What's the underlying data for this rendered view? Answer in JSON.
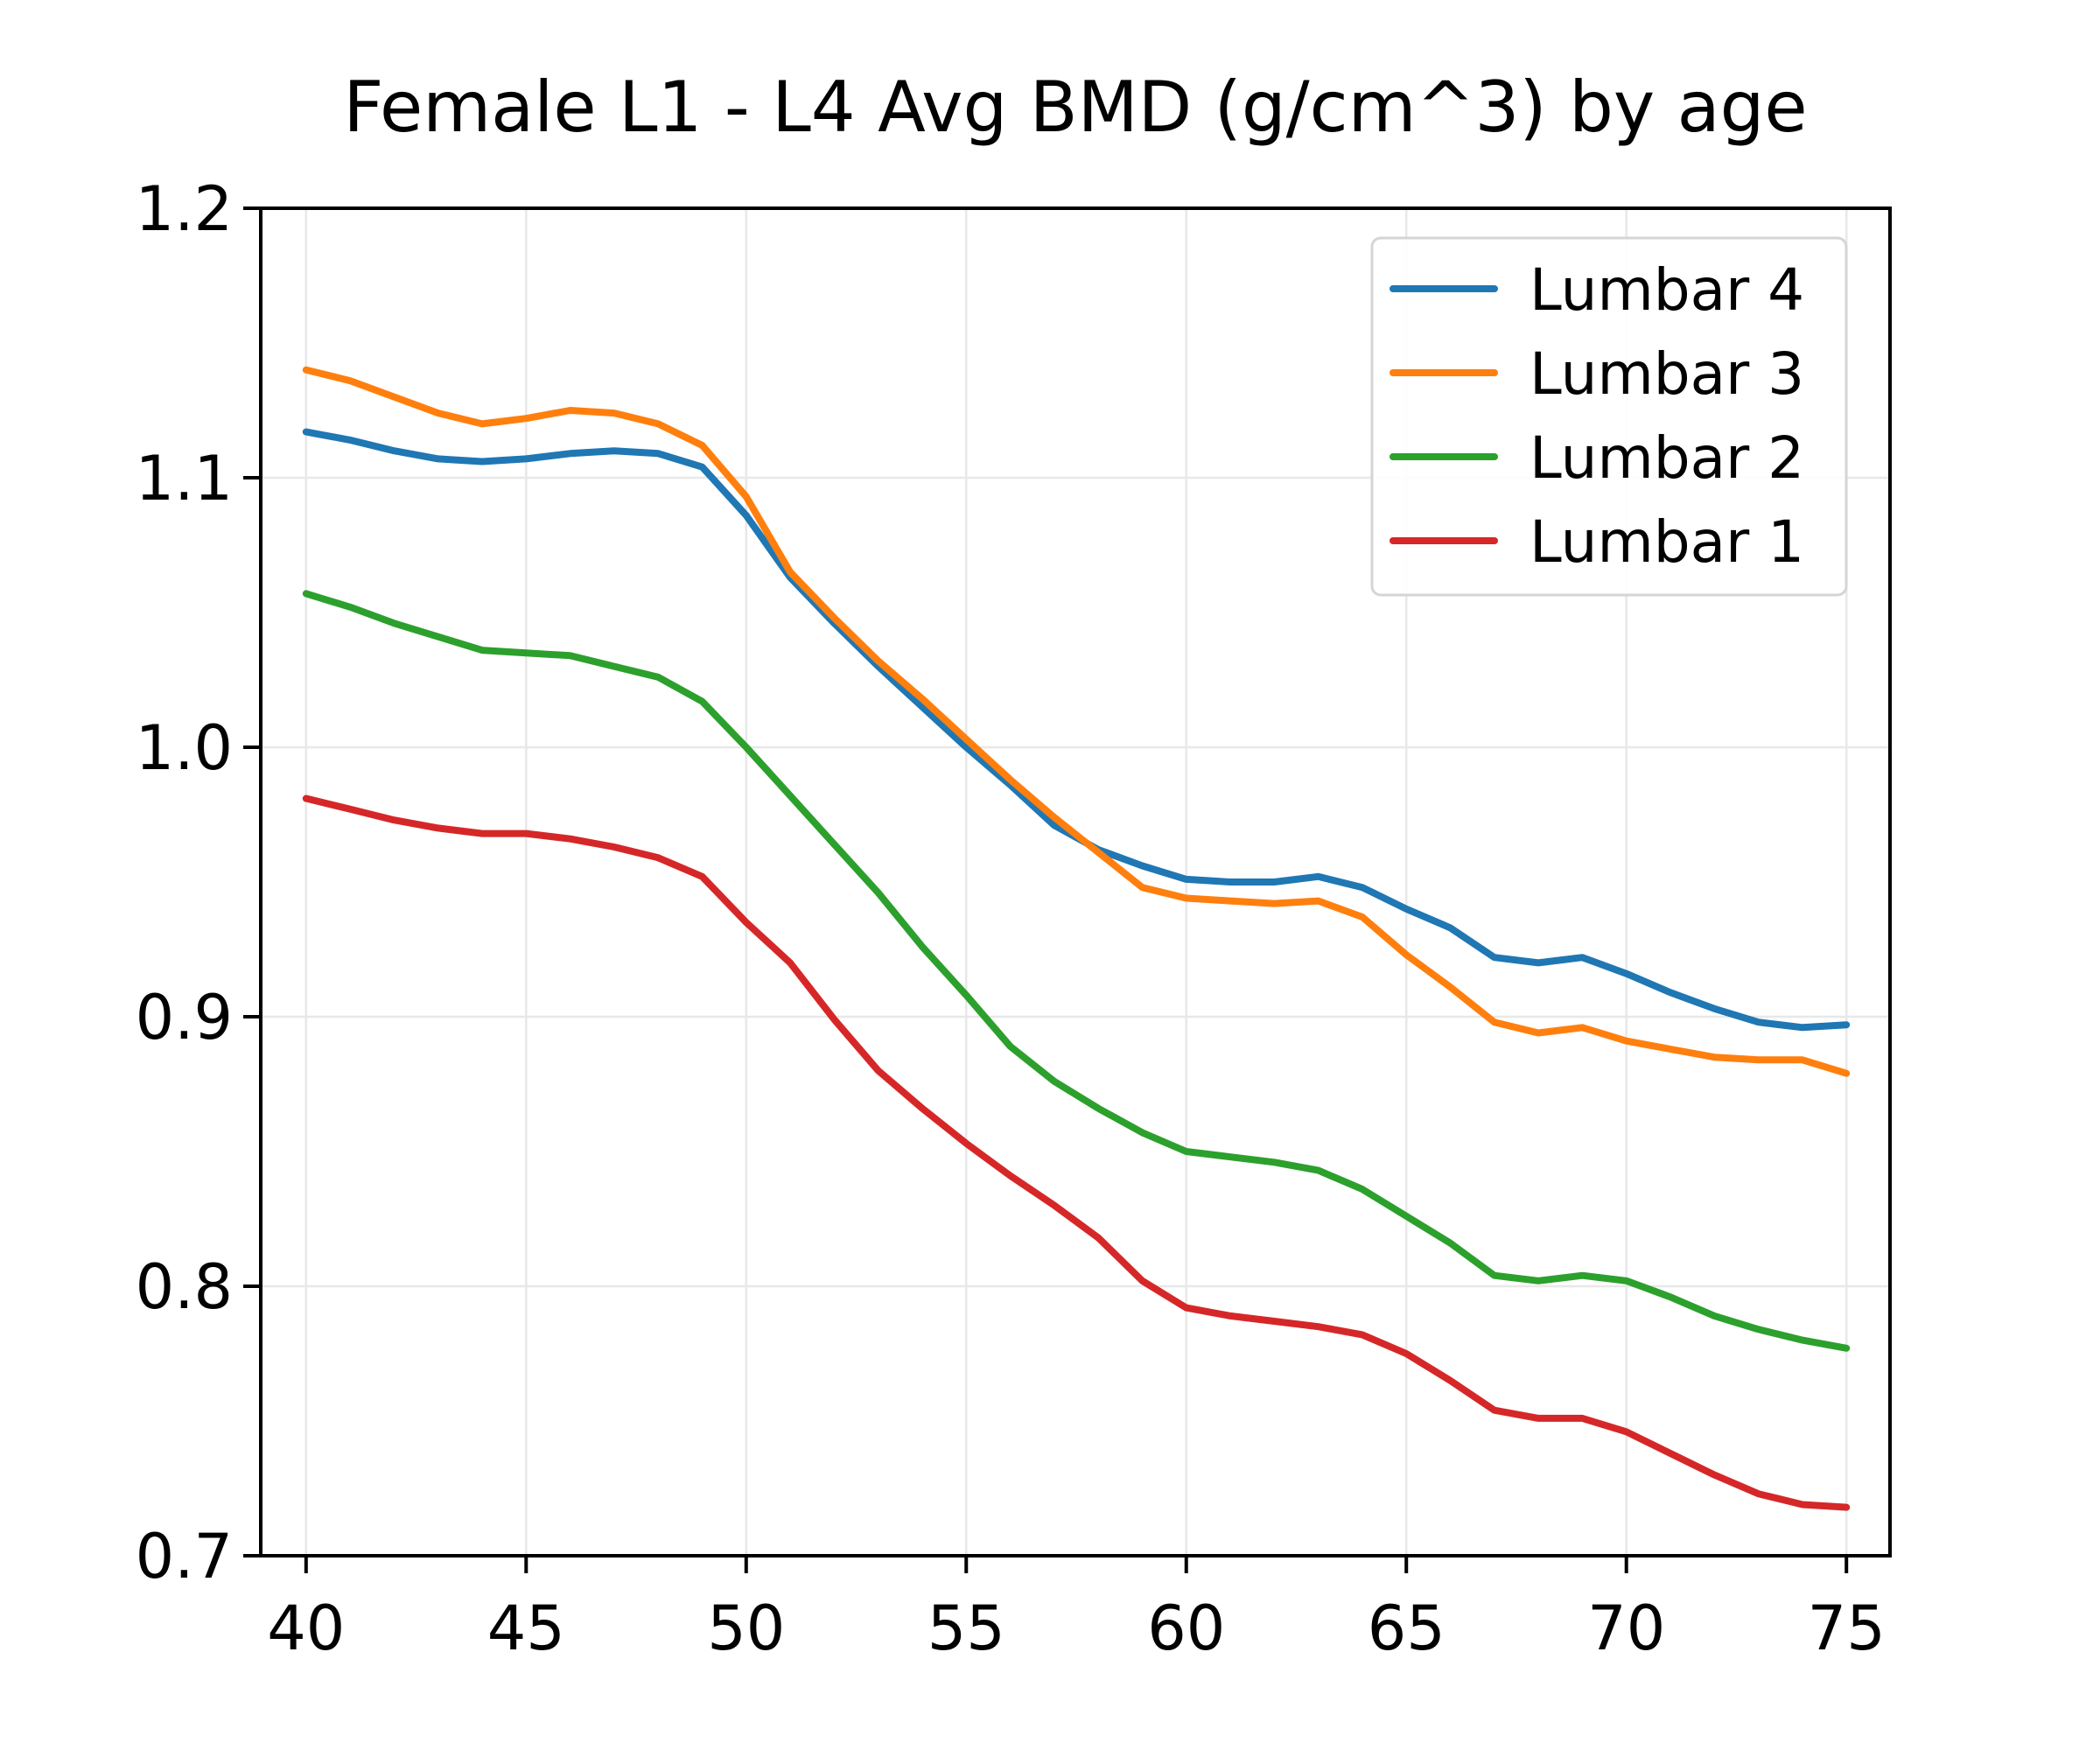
{
  "chart_data": {
    "type": "line",
    "title": "Female L1 - L4 Avg BMD (g/cm^3) by age",
    "xlabel": "",
    "ylabel": "",
    "grid": true,
    "legend_position": "upper right",
    "xlim": [
      38.97,
      75.99
    ],
    "ylim": [
      0.7,
      1.2
    ],
    "xticks": [
      40,
      45,
      50,
      55,
      60,
      65,
      70,
      75
    ],
    "ytick_values": [
      0.7,
      0.8,
      0.9,
      1.0,
      1.1,
      1.2
    ],
    "ytick_labels": [
      "0.7",
      "0.8",
      "0.9",
      "1.0",
      "1.1",
      "1.2"
    ],
    "x": [
      40,
      41,
      42,
      43,
      44,
      45,
      46,
      47,
      48,
      49,
      50,
      51,
      52,
      53,
      54,
      55,
      56,
      57,
      58,
      59,
      60,
      61,
      62,
      63,
      64,
      65,
      66,
      67,
      68,
      69,
      70,
      71,
      72,
      73,
      74,
      75
    ],
    "series": [
      {
        "name": "Lumbar 4",
        "color": "#1f77b4",
        "values": [
          1.117,
          1.114,
          1.11,
          1.107,
          1.106,
          1.107,
          1.109,
          1.11,
          1.109,
          1.104,
          1.086,
          1.063,
          1.046,
          1.03,
          1.015,
          1.0,
          0.986,
          0.971,
          0.962,
          0.956,
          0.951,
          0.95,
          0.95,
          0.952,
          0.948,
          0.94,
          0.933,
          0.922,
          0.92,
          0.922,
          0.916,
          0.909,
          0.903,
          0.898,
          0.896,
          0.897
        ]
      },
      {
        "name": "Lumbar 3",
        "color": "#ff7f0e",
        "values": [
          1.14,
          1.136,
          1.13,
          1.124,
          1.12,
          1.122,
          1.125,
          1.124,
          1.12,
          1.112,
          1.093,
          1.065,
          1.048,
          1.032,
          1.018,
          1.003,
          0.988,
          0.974,
          0.961,
          0.948,
          0.944,
          0.943,
          0.942,
          0.943,
          0.937,
          0.923,
          0.911,
          0.898,
          0.894,
          0.896,
          0.891,
          0.888,
          0.885,
          0.884,
          0.884,
          0.879
        ]
      },
      {
        "name": "Lumbar 2",
        "color": "#2ca02c",
        "values": [
          1.057,
          1.052,
          1.046,
          1.041,
          1.036,
          1.035,
          1.034,
          1.03,
          1.026,
          1.017,
          1.0,
          0.982,
          0.964,
          0.946,
          0.926,
          0.908,
          0.889,
          0.876,
          0.866,
          0.857,
          0.85,
          0.848,
          0.846,
          0.843,
          0.836,
          0.826,
          0.816,
          0.804,
          0.802,
          0.804,
          0.802,
          0.796,
          0.789,
          0.784,
          0.78,
          0.777
        ]
      },
      {
        "name": "Lumbar 1",
        "color": "#d62728",
        "values": [
          0.981,
          0.977,
          0.973,
          0.97,
          0.968,
          0.968,
          0.966,
          0.963,
          0.959,
          0.952,
          0.935,
          0.92,
          0.899,
          0.88,
          0.866,
          0.853,
          0.841,
          0.83,
          0.818,
          0.802,
          0.792,
          0.789,
          0.787,
          0.785,
          0.782,
          0.775,
          0.765,
          0.754,
          0.751,
          0.751,
          0.746,
          0.738,
          0.73,
          0.723,
          0.719,
          0.718
        ]
      }
    ],
    "styles": {
      "grid_color": "#e8e8e8",
      "spine_color": "#000000",
      "legend_border_color": "#d5d5d5",
      "legend_background": "#ffffff"
    }
  }
}
